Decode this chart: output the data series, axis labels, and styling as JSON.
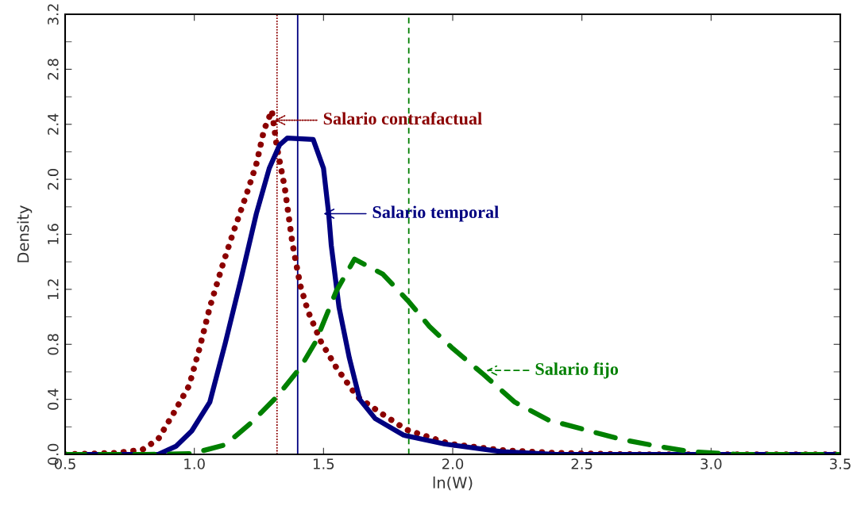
{
  "chart_data": {
    "type": "line",
    "xlabel": "ln(W)",
    "ylabel": "Density",
    "xlim": [
      0.5,
      3.5
    ],
    "xticks": [
      0.5,
      {
        "value": 1,
        "label": "1.0"
      },
      1.5,
      {
        "value": 2,
        "label": "2.0"
      },
      2.5,
      {
        "value": 3,
        "label": "3.0"
      },
      3.5
    ],
    "ylim": [
      0.0,
      3.2
    ],
    "yticks": [
      {
        "value": 0,
        "label": "0.0"
      },
      0.4,
      0.8,
      1.2,
      1.6,
      {
        "value": 2,
        "label": "2.0"
      },
      2.4,
      2.8,
      3.2
    ],
    "grid": false,
    "legend": false,
    "series": [
      {
        "color": "#8b0000",
        "line_style": "dotted",
        "x": [
          0.5,
          0.7,
          0.8,
          0.86,
          0.92,
          0.98,
          1.02,
          1.06,
          1.11,
          1.15,
          1.2,
          1.24,
          1.27,
          1.3,
          1.32,
          1.35,
          1.38,
          1.41,
          1.44,
          1.49,
          1.55,
          1.63,
          1.73,
          1.82,
          1.99,
          2.19,
          2.4,
          2.7,
          3.0,
          3.5
        ],
        "values": [
          0,
          0.01,
          0.035,
          0.11,
          0.3,
          0.5,
          0.77,
          1.07,
          1.38,
          1.61,
          1.88,
          2.11,
          2.36,
          2.5,
          2.23,
          1.94,
          1.53,
          1.23,
          1.04,
          0.82,
          0.63,
          0.42,
          0.29,
          0.18,
          0.075,
          0.03,
          0.01,
          0,
          0,
          0
        ]
      },
      {
        "color": "#000080",
        "line_style": "solid",
        "x": [
          0.5,
          0.86,
          0.93,
          0.99,
          1.06,
          1.12,
          1.18,
          1.24,
          1.29,
          1.33,
          1.36,
          1.46,
          1.5,
          1.52,
          1.53,
          1.56,
          1.6,
          1.64,
          1.7,
          1.81,
          1.97,
          2.19,
          2.4,
          3.0,
          3.5
        ],
        "values": [
          0,
          0,
          0.06,
          0.17,
          0.38,
          0.81,
          1.27,
          1.75,
          2.08,
          2.25,
          2.3,
          2.29,
          2.08,
          1.75,
          1.52,
          1.07,
          0.7,
          0.4,
          0.26,
          0.14,
          0.075,
          0.02,
          0,
          0,
          0
        ]
      },
      {
        "color": "#008000",
        "line_style": "dashed",
        "x": [
          0.5,
          0.81,
          0.99,
          1.12,
          1.22,
          1.32,
          1.41,
          1.47,
          1.55,
          1.62,
          1.73,
          1.83,
          1.91,
          2.0,
          2.12,
          2.24,
          2.37,
          2.51,
          2.65,
          2.79,
          2.92,
          3.1,
          3.5
        ],
        "values": [
          0,
          0,
          0.005,
          0.07,
          0.23,
          0.42,
          0.63,
          0.82,
          1.19,
          1.42,
          1.31,
          1.11,
          0.93,
          0.77,
          0.58,
          0.38,
          0.25,
          0.18,
          0.11,
          0.06,
          0.02,
          0,
          0
        ]
      }
    ],
    "ref_lines": [
      {
        "axis": "x",
        "value": 1.32,
        "color": "#8b0000",
        "line_style": "dotted"
      },
      {
        "axis": "x",
        "value": 1.4,
        "color": "#000080",
        "line_style": "solid"
      },
      {
        "axis": "x",
        "value": 1.83,
        "color": "#008000",
        "line_style": "dashed"
      }
    ],
    "annotations": [
      {
        "text": "Salario contrafactual",
        "x": 1.31,
        "y": 2.43
      },
      {
        "text": "Salario temporal",
        "x": 1.5,
        "y": 1.75
      },
      {
        "text": "Salario fijo",
        "x": 2.13,
        "y": 0.61
      }
    ]
  }
}
